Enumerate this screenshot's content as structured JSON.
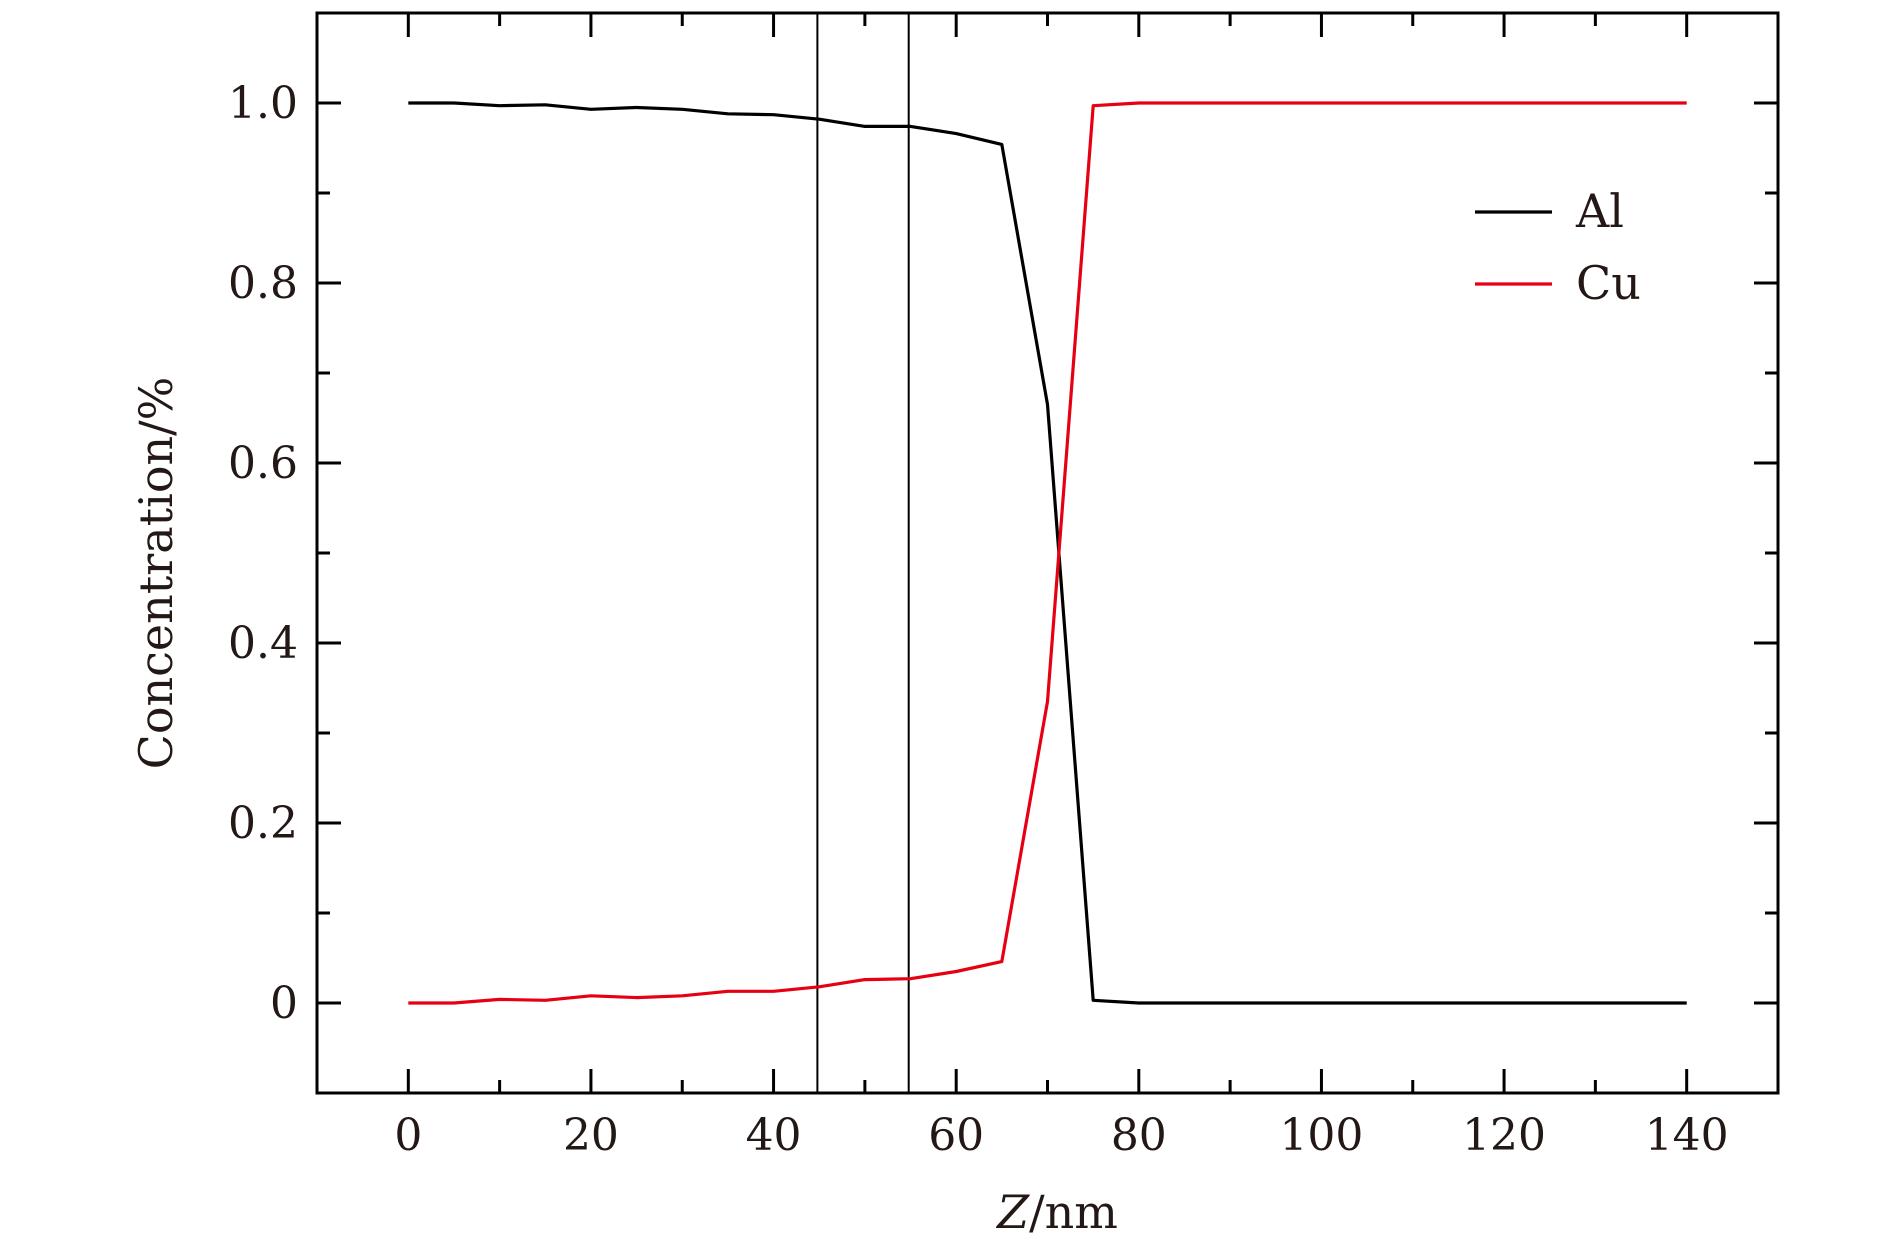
{
  "chart_data": {
    "type": "line",
    "title": "",
    "xlabel_var": "Z",
    "xlabel_unit": "/nm",
    "ylabel": "Concentration/%",
    "xlim": [
      -10,
      150
    ],
    "ylim": [
      -0.1,
      1.1
    ],
    "x_ticks": [
      0,
      20,
      40,
      60,
      80,
      100,
      120,
      140
    ],
    "x_tick_labels": [
      "0",
      "20",
      "40",
      "60",
      "80",
      "100",
      "120",
      "140"
    ],
    "y_ticks": [
      0,
      0.2,
      0.4,
      0.6,
      0.8,
      1.0
    ],
    "y_tick_labels": [
      "0",
      "0.2",
      "0.4",
      "0.6",
      "0.8",
      "1.0"
    ],
    "x_minor_ticks": [
      -10,
      10,
      30,
      50,
      70,
      90,
      110,
      130,
      150
    ],
    "y_minor_ticks": [
      -0.1,
      0.1,
      0.3,
      0.5,
      0.7,
      0.9,
      1.1
    ],
    "grid": false,
    "legend_position": "top-right",
    "vertical_lines": [
      44.8,
      54.8
    ],
    "series": [
      {
        "name": "Al",
        "color": "#000000",
        "x": [
          0,
          5,
          10,
          15,
          20,
          25,
          30,
          35,
          40,
          45,
          50,
          55,
          60,
          65,
          70,
          75,
          80,
          85,
          90,
          95,
          100,
          105,
          110,
          115,
          120,
          125,
          130,
          135,
          140
        ],
        "y": [
          1.0,
          1.0,
          0.997,
          0.998,
          0.993,
          0.995,
          0.993,
          0.988,
          0.987,
          0.982,
          0.974,
          0.974,
          0.966,
          0.954,
          0.665,
          0.003,
          0.0,
          0.0,
          0.0,
          0.0,
          0.0,
          0.0,
          0.0,
          0.0,
          0.0,
          0.0,
          0.0,
          0.0,
          0.0
        ]
      },
      {
        "name": "Cu",
        "color": "#e60012",
        "x": [
          0,
          5,
          10,
          15,
          20,
          25,
          30,
          35,
          40,
          45,
          50,
          55,
          60,
          65,
          70,
          75,
          80,
          85,
          90,
          95,
          100,
          105,
          110,
          115,
          120,
          125,
          130,
          135,
          140
        ],
        "y": [
          0.0,
          0.0,
          0.004,
          0.003,
          0.008,
          0.006,
          0.008,
          0.013,
          0.013,
          0.018,
          0.026,
          0.027,
          0.035,
          0.046,
          0.335,
          0.997,
          1.0,
          1.0,
          1.0,
          1.0,
          1.0,
          1.0,
          1.0,
          1.0,
          1.0,
          1.0,
          1.0,
          1.0,
          1.0
        ]
      }
    ]
  }
}
